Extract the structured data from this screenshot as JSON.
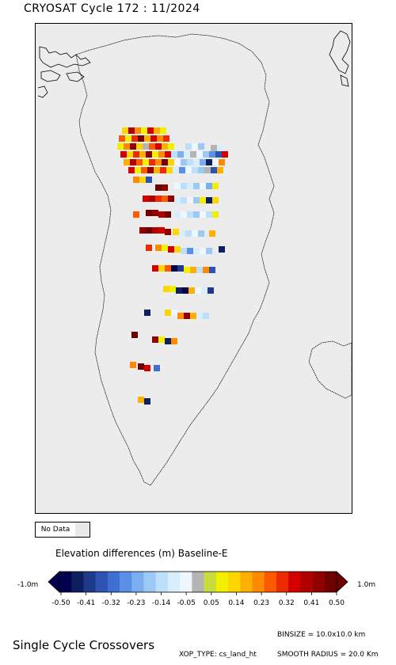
{
  "title": "CRYOSAT Cycle 172 : 11/2024",
  "map": {
    "background": "#ececec",
    "coast": "#000000"
  },
  "nodata": {
    "label": "No Data",
    "color": "#e8e8e8"
  },
  "legend": {
    "title": "Elevation differences (m) Baseline-E",
    "min_label": "-1.0m",
    "max_label": "1.0m",
    "tick_labels": [
      "-0.50",
      "-0.41",
      "-0.32",
      "-0.23",
      "-0.14",
      "-0.05",
      "0.05",
      "0.14",
      "0.23",
      "0.32",
      "0.41",
      "0.50"
    ],
    "colors": [
      "#00004c",
      "#0d1f5c",
      "#1f3a8a",
      "#2f53b0",
      "#3f6fd0",
      "#5a8fe6",
      "#7aaef0",
      "#9cc8f6",
      "#bde0fa",
      "#d9eefc",
      "#eef7fd",
      "#b4b4b4",
      "#c8dc3c",
      "#f2f000",
      "#fdd600",
      "#fdb000",
      "#fd8a00",
      "#fd5a00",
      "#ee2a00",
      "#d40000",
      "#b00000",
      "#900000",
      "#700000"
    ]
  },
  "footer": {
    "title": "Single Cycle Crossovers",
    "binsize": "BINSIZE = 10.0x10.0 km",
    "xop_type": "XOP_TYPE: cs_land_ht",
    "smooth_radius": "SMOOTH RADIUS = 20.0 Km"
  }
}
